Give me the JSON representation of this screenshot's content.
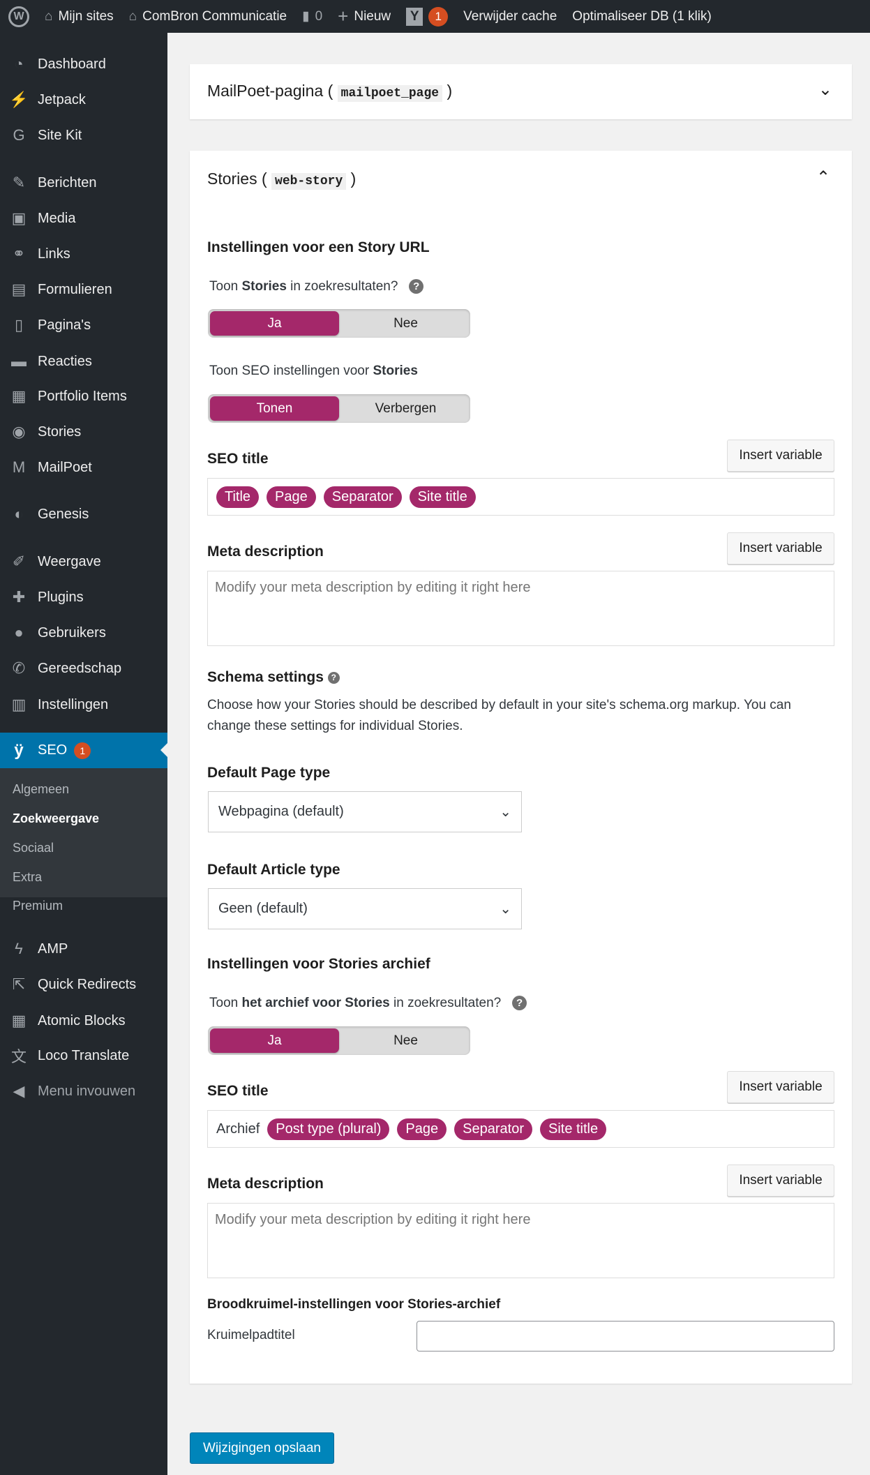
{
  "adminbar": {
    "my_sites": "Mijn sites",
    "site_name": "ComBron Communicatie",
    "comments": "0",
    "new": "Nieuw",
    "yoast_badge": "1",
    "clear_cache": "Verwijder cache",
    "optimize_db": "Optimaliseer DB (1 klik)"
  },
  "sidebar": {
    "items": [
      "Dashboard",
      "Jetpack",
      "Site Kit",
      "Berichten",
      "Media",
      "Links",
      "Formulieren",
      "Pagina's",
      "Reacties",
      "Portfolio Items",
      "Stories",
      "MailPoet",
      "Genesis",
      "Weergave",
      "Plugins",
      "Gebruikers",
      "Gereedschap",
      "Instellingen"
    ],
    "seo": "SEO",
    "seo_badge": "1",
    "submenu": [
      "Algemeen",
      "Zoekweergave",
      "Sociaal",
      "Extra",
      "Premium"
    ],
    "items_after": [
      "AMP",
      "Quick Redirects",
      "Atomic Blocks",
      "Loco Translate"
    ],
    "collapse": "Menu invouwen"
  },
  "colors": {
    "accent": "#a4286a",
    "wp_blue": "#0073aa",
    "adminbar": "#23282d"
  },
  "mailpoet": {
    "title": "MailPoet-pagina (",
    "slug": "mailpoet_page",
    "close": ")"
  },
  "stories": {
    "title": "Stories (",
    "slug": "web-story",
    "close": ")",
    "url_heading": "Instellingen voor een Story URL",
    "show_in_search": {
      "pre": "Toon ",
      "bold": "Stories",
      "post": " in zoekresultaten?",
      "yes": "Ja",
      "no": "Nee",
      "selected": "Ja"
    },
    "show_seo": {
      "pre": "Toon SEO instellingen voor ",
      "bold": "Stories",
      "show": "Tonen",
      "hide": "Verbergen",
      "selected": "Tonen"
    },
    "seo_title_label": "SEO title",
    "insert_variable": "Insert variable",
    "seo_title_pills": [
      "Title",
      "Page",
      "Separator",
      "Site title"
    ],
    "meta_label": "Meta description",
    "meta_placeholder": "Modify your meta description by editing it right here",
    "schema_heading": "Schema settings",
    "schema_text1": "Choose how your Stories should be described by default in your site's schema.org markup. You can",
    "schema_text2": "change these settings for individual Stories.",
    "page_type_label": "Default Page type",
    "page_type_value": "Webpagina (default)",
    "article_type_label": "Default Article type",
    "article_type_value": "Geen (default)",
    "archive_heading": "Instellingen voor Stories archief",
    "archive_search": {
      "pre": "Toon ",
      "bold": "het archief voor Stories",
      "post": " in zoekresultaten?",
      "yes": "Ja",
      "no": "Nee",
      "selected": "Ja"
    },
    "archive_title_prefix": "Archief",
    "archive_title_pills": [
      "Post type (plural)",
      "Page",
      "Separator",
      "Site title"
    ],
    "breadcrumb_heading": "Broodkruimel-instellingen voor Stories-archief",
    "breadcrumb_label": "Kruimelpadtitel",
    "breadcrumb_value": ""
  },
  "save": "Wijzigingen opslaan"
}
